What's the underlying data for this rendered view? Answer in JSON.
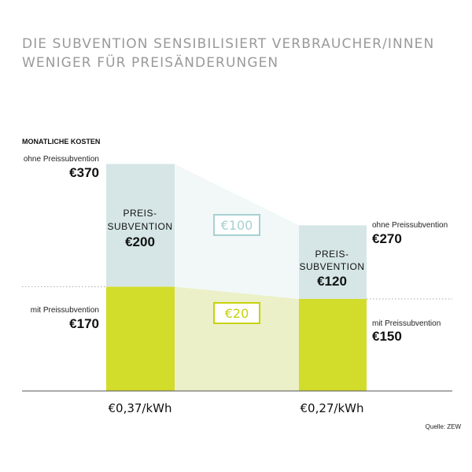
{
  "title": {
    "line1": "DIE SUBVENTION SENSIBILISIERT VERBRAUCHER/INNEN",
    "line2": "WENIGER FÜR PREISÄNDERUNGEN"
  },
  "colors": {
    "subsidized": "#d2dc2a",
    "subsidy": "#d6e6e6",
    "subsidized_band": "#ebf0c8",
    "subsidy_band": "#f2f8f8",
    "diff_subsidy": "#a8d0d0",
    "diff_subsidized": "#c6d20a"
  },
  "chart_data": {
    "type": "bar",
    "ylabel": "MONATLICHE KOSTEN",
    "categories": [
      "€0,37/kWh",
      "€0,27/kWh"
    ],
    "series": [
      {
        "name": "mit Preissubvention",
        "values": [
          170,
          150
        ]
      },
      {
        "name": "Preissubvention",
        "values": [
          200,
          120
        ]
      }
    ],
    "totals_label": "ohne Preissubvention",
    "totals": [
      370,
      270
    ],
    "value_labels": {
      "with": [
        "€170",
        "€150"
      ],
      "without": [
        "€370",
        "€270"
      ],
      "subsidy": [
        "€200",
        "€120"
      ]
    },
    "subsidy_label_line1": "PREIS-",
    "subsidy_label_line2": "SUBVENTION",
    "differences": {
      "without": "€100",
      "with": "€20"
    },
    "source": "Quelle: ZEW"
  }
}
